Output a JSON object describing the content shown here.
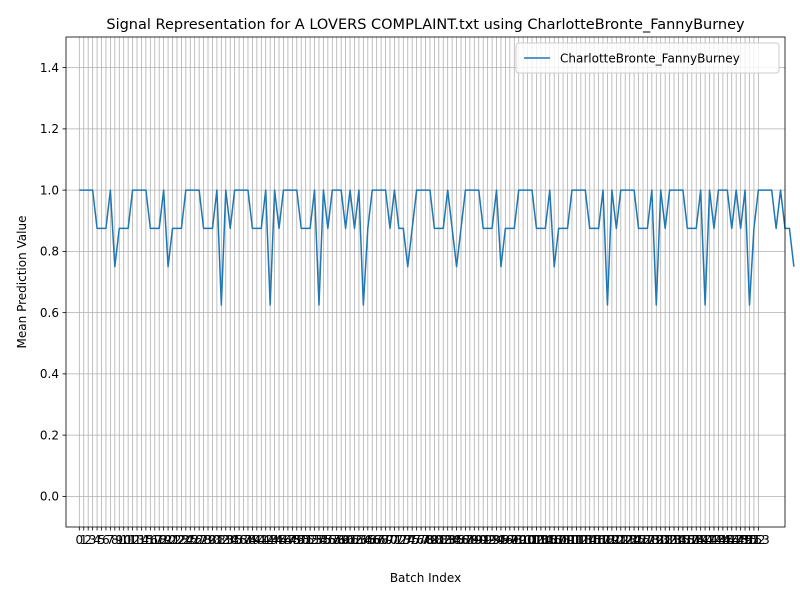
{
  "chart_data": {
    "type": "line",
    "title": "Signal Representation for A LOVERS COMPLAINT.txt using CharlotteBronte_FannyBurney",
    "xlabel": "Batch Index",
    "ylabel": "Mean Prediction Value",
    "xlim": [
      -3,
      159
    ],
    "ylim": [
      -0.1,
      1.5
    ],
    "yticks": [
      0.0,
      0.2,
      0.4,
      0.6,
      0.8,
      1.0,
      1.2,
      1.4
    ],
    "xticks": [
      0,
      1,
      2,
      3,
      4,
      5,
      6,
      7,
      8,
      9,
      10,
      11,
      12,
      13,
      14,
      15,
      16,
      17,
      18,
      19,
      20,
      21,
      22,
      23,
      24,
      25,
      26,
      27,
      28,
      29,
      30,
      31,
      32,
      33,
      34,
      35,
      36,
      37,
      38,
      39,
      40,
      41,
      42,
      43,
      44,
      45,
      46,
      47,
      48,
      49,
      50,
      51,
      52,
      53,
      54,
      55,
      56,
      57,
      58,
      59,
      60,
      61,
      62,
      63,
      64,
      65,
      66,
      67,
      68,
      69,
      70,
      71,
      72,
      73,
      74,
      75,
      76,
      77,
      78,
      79,
      80,
      81,
      82,
      83,
      84,
      85,
      86,
      87,
      88,
      89,
      90,
      91,
      92,
      93,
      94,
      95,
      96,
      97,
      98,
      99,
      100,
      101,
      102,
      103,
      104,
      105,
      106,
      107,
      108,
      109,
      110,
      111,
      112,
      113,
      114,
      115,
      116,
      117,
      118,
      119,
      120,
      121,
      122,
      123,
      124,
      125,
      126,
      127,
      128,
      129,
      130,
      131,
      132,
      133,
      134,
      135,
      136,
      137,
      138,
      139,
      140,
      141,
      142,
      143,
      144,
      145,
      146,
      147,
      148,
      149,
      150,
      151,
      152,
      153
    ],
    "grid": true,
    "legend_position": "top-right",
    "series": [
      {
        "name": "CharlotteBronte_FannyBurney",
        "color": "#1f77b4",
        "values": [
          1.0,
          1.0,
          1.0,
          1.0,
          0.875,
          0.875,
          0.875,
          1.0,
          0.75,
          0.875,
          0.875,
          0.875,
          1.0,
          1.0,
          1.0,
          1.0,
          0.875,
          0.875,
          0.875,
          1.0,
          0.75,
          0.875,
          0.875,
          0.875,
          1.0,
          1.0,
          1.0,
          1.0,
          0.875,
          0.875,
          0.875,
          1.0,
          0.625,
          1.0,
          0.875,
          1.0,
          1.0,
          1.0,
          1.0,
          0.875,
          0.875,
          0.875,
          1.0,
          0.625,
          1.0,
          0.875,
          1.0,
          1.0,
          1.0,
          1.0,
          0.875,
          0.875,
          0.875,
          1.0,
          0.625,
          1.0,
          0.875,
          1.0,
          1.0,
          1.0,
          0.875,
          1.0,
          0.875,
          1.0,
          0.625,
          0.875,
          1.0,
          1.0,
          1.0,
          1.0,
          0.875,
          1.0,
          0.875,
          0.875,
          0.75,
          0.875,
          1.0,
          1.0,
          1.0,
          1.0,
          0.875,
          0.875,
          0.875,
          1.0,
          0.875,
          0.75,
          0.875,
          1.0,
          1.0,
          1.0,
          1.0,
          0.875,
          0.875,
          0.875,
          1.0,
          0.75,
          0.875,
          0.875,
          0.875,
          1.0,
          1.0,
          1.0,
          1.0,
          0.875,
          0.875,
          0.875,
          1.0,
          0.75,
          0.875,
          0.875,
          0.875,
          1.0,
          1.0,
          1.0,
          1.0,
          0.875,
          0.875,
          0.875,
          1.0,
          0.625,
          1.0,
          0.875,
          1.0,
          1.0,
          1.0,
          1.0,
          0.875,
          0.875,
          0.875,
          1.0,
          0.625,
          1.0,
          0.875,
          1.0,
          1.0,
          1.0,
          1.0,
          0.875,
          0.875,
          0.875,
          1.0,
          0.625,
          1.0,
          0.875,
          1.0,
          1.0,
          1.0,
          0.875,
          1.0,
          0.875,
          1.0,
          0.625,
          0.875,
          1.0,
          1.0,
          1.0,
          1.0,
          0.875,
          1.0,
          0.875,
          0.875,
          0.75
        ]
      }
    ]
  }
}
